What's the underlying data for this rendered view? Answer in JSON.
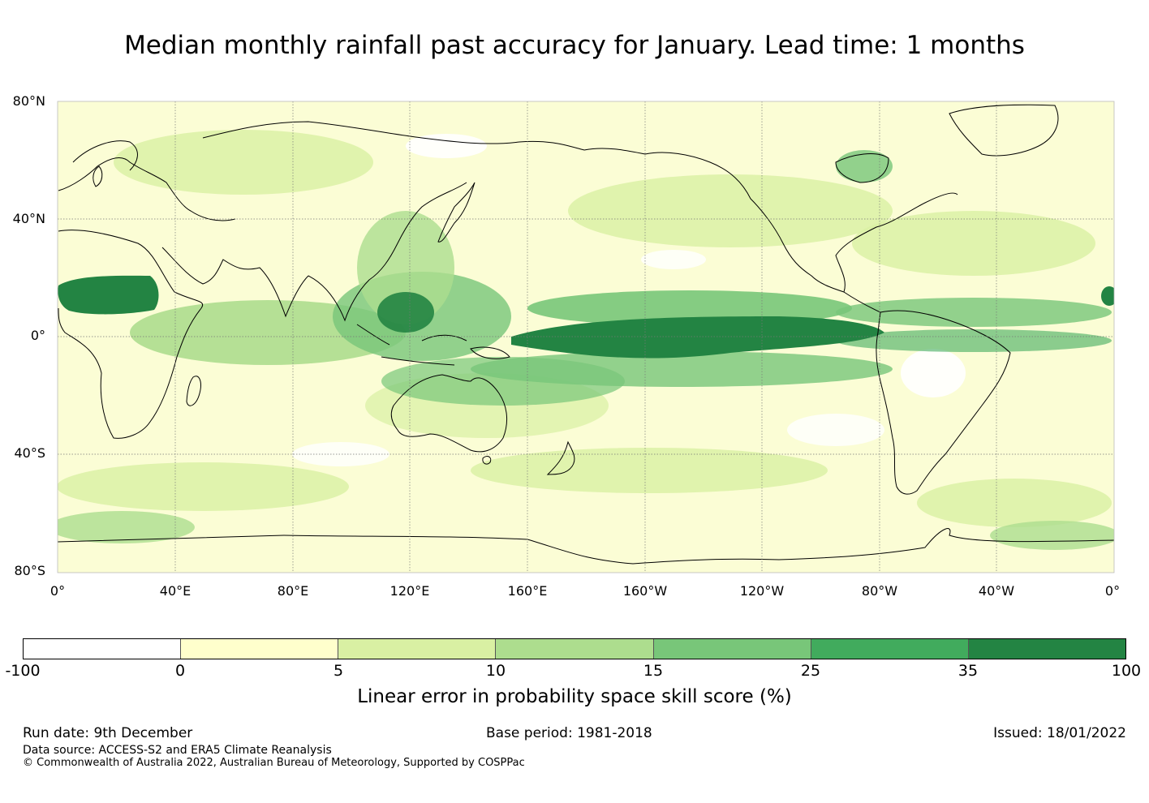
{
  "title": "Median monthly rainfall past accuracy for January. Lead time: 1 months",
  "map": {
    "lat_labels": [
      "80°N",
      "40°N",
      "0°",
      "40°S",
      "80°S"
    ],
    "lon_labels": [
      "0°",
      "40°E",
      "80°E",
      "120°E",
      "160°E",
      "160°W",
      "120°W",
      "80°W",
      "40°W",
      "0°"
    ],
    "ocean_background": "#fbfdd5",
    "land_line_color": "#000000"
  },
  "colorbar": {
    "ticks": [
      "-100",
      "0",
      "5",
      "10",
      "15",
      "25",
      "35",
      "100"
    ],
    "colors": [
      "#ffffff",
      "#ffffcc",
      "#d9f0a3",
      "#addd8e",
      "#78c679",
      "#41ab5d",
      "#238443"
    ],
    "label": "Linear error in probability space skill score (%)"
  },
  "footer": {
    "run_date": "Run date: 9th December",
    "base_period": "Base period: 1981-2018",
    "issued": "Issued: 18/01/2022",
    "data_source": "Data source: ACCESS-S2 and ERA5 Climate Reanalysis",
    "copyright": "© Commonwealth of Australia 2022, Australian Bureau of Meteorology, Supported by COSPPac"
  }
}
